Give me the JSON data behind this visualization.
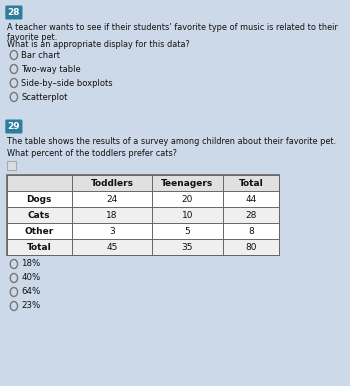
{
  "q28_number": "28",
  "q28_text": "A teacher wants to see if their students’ favorite type of music is related to their favorite pet.",
  "q28_subtext": "What is an appropriate display for this data?",
  "q28_options": [
    "Bar chart",
    "Two-way table",
    "Side-by–side boxplots",
    "Scatterplot"
  ],
  "q29_number": "29",
  "q29_text": "The table shows the results of a survey among children about their favorite pet.",
  "q29_subtext": "What percent of the toddlers prefer cats?",
  "table_headers": [
    "",
    "Toddlers",
    "Teenagers",
    "Total"
  ],
  "table_rows": [
    [
      "Dogs",
      "24",
      "20",
      "44"
    ],
    [
      "Cats",
      "18",
      "10",
      "28"
    ],
    [
      "Other",
      "3",
      "5",
      "8"
    ],
    [
      "Total",
      "45",
      "35",
      "80"
    ]
  ],
  "q29_options": [
    "18%",
    "40%",
    "64%",
    "23%"
  ],
  "bg_color": "#ccd9e8",
  "badge_color": "#2e7d9e",
  "badge_text_color": "#ffffff",
  "text_color": "#111111",
  "radio_color": "#777777",
  "table_border_color": "#666666",
  "table_header_row_bg": "#e0e0e0",
  "table_row_bg_even": "#ffffff",
  "table_row_bg_odd": "#efefef",
  "table_outer_bg": "#f5f5f5"
}
